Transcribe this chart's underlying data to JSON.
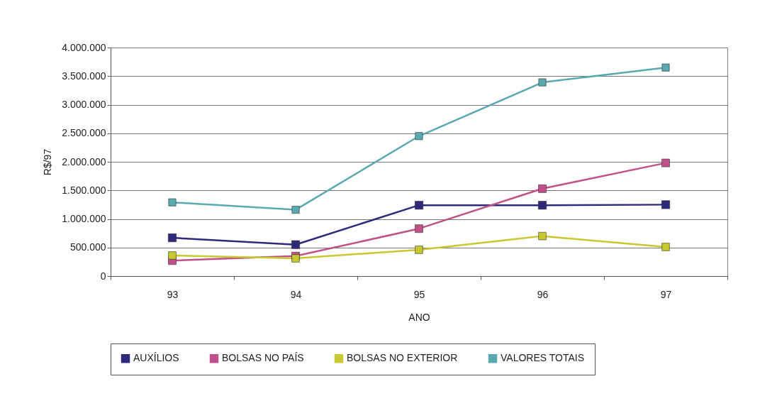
{
  "chart_data": {
    "type": "line",
    "xlabel": "ANO",
    "ylabel": "R$/97",
    "categories": [
      "93",
      "94",
      "95",
      "96",
      "97"
    ],
    "series": [
      {
        "name": "AUXÍLIOS",
        "color": "#2e2a7a",
        "values": [
          670000,
          550000,
          1240000,
          1240000,
          1250000
        ]
      },
      {
        "name": "BOLSAS NO PAÍS",
        "color": "#c0508a",
        "values": [
          270000,
          350000,
          830000,
          1530000,
          1980000
        ]
      },
      {
        "name": "BOLSAS NO EXTERIOR",
        "color": "#c8c830",
        "values": [
          360000,
          310000,
          460000,
          700000,
          510000
        ]
      },
      {
        "name": "VALORES TOTAIS",
        "color": "#5aa8b0",
        "values": [
          1290000,
          1160000,
          2450000,
          3390000,
          3650000
        ]
      }
    ],
    "ylim": [
      0,
      4000000
    ],
    "yticks": [
      0,
      {
        "value": 500000,
        "label": "500.000"
      },
      {
        "value": 1000000,
        "label": "1.000.000"
      },
      {
        "value": 1500000,
        "label": "1.500.000"
      },
      {
        "value": 2000000,
        "label": "2.000.000"
      },
      {
        "value": 2500000,
        "label": "2.500.000"
      },
      {
        "value": 3000000,
        "label": "3.000.000"
      },
      {
        "value": 3500000,
        "label": "3.500.000"
      },
      {
        "value": 4000000,
        "label": "4.000.000"
      }
    ],
    "grid": "y",
    "legend": "bottom",
    "marker": "square",
    "line_style": "solid"
  }
}
